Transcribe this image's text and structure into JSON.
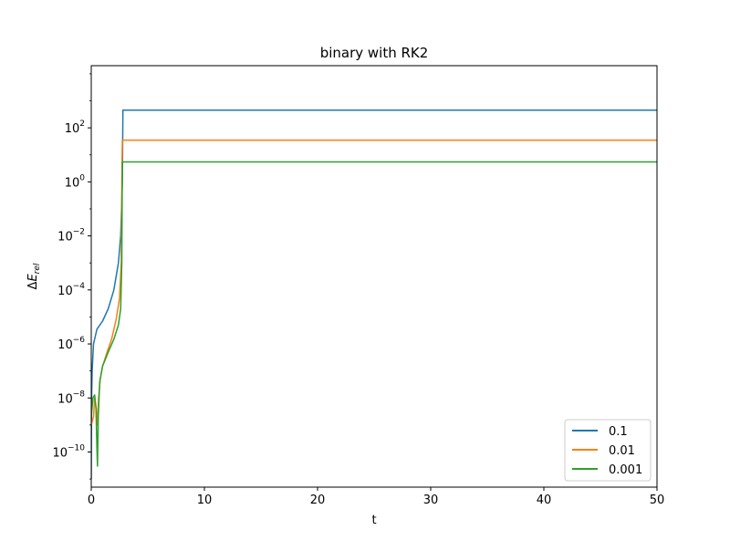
{
  "chart_data": {
    "type": "line",
    "title": "binary with RK2",
    "xlabel": "t",
    "ylabel_parts": {
      "delta": "Δ",
      "symbol": "E",
      "subscript": "rel"
    },
    "xlim": [
      0,
      50
    ],
    "ylim": [
      5e-12,
      20000.0
    ],
    "yscale": "log",
    "grid": false,
    "legend_position": "lower right",
    "x_ticks": [
      "0",
      "10",
      "20",
      "30",
      "40",
      "50"
    ],
    "x_tick_values": [
      0,
      10,
      20,
      30,
      40,
      50
    ],
    "y_ticks": [
      {
        "base": "10",
        "exp": "2",
        "value": 100
      },
      {
        "base": "10",
        "exp": "0",
        "value": 1
      },
      {
        "base": "10",
        "exp": "−2",
        "value": 0.01
      },
      {
        "base": "10",
        "exp": "−4",
        "value": 0.0001
      },
      {
        "base": "10",
        "exp": "−6",
        "value": 1e-06
      },
      {
        "base": "10",
        "exp": "−8",
        "value": 1e-08
      },
      {
        "base": "10",
        "exp": "−10",
        "value": 1e-10
      }
    ],
    "series": [
      {
        "name": "0.1",
        "color": "#1f77b4",
        "points": [
          [
            0.0,
            1e-11
          ],
          [
            0.03,
            1e-08
          ],
          [
            0.08,
            1e-07
          ],
          [
            0.2,
            1e-06
          ],
          [
            0.5,
            3.5e-06
          ],
          [
            1.0,
            7e-06
          ],
          [
            1.5,
            2e-05
          ],
          [
            2.0,
            0.0001
          ],
          [
            2.4,
            0.001
          ],
          [
            2.6,
            0.01
          ],
          [
            2.75,
            1
          ],
          [
            2.8,
            450
          ],
          [
            50,
            450
          ]
        ]
      },
      {
        "name": "0.01",
        "color": "#ff7f0e",
        "points": [
          [
            0.0,
            1e-09
          ],
          [
            0.2,
            2e-09
          ],
          [
            0.3,
            1e-08
          ],
          [
            0.45,
            4e-09
          ],
          [
            0.55,
            1e-09
          ],
          [
            0.65,
            1e-08
          ],
          [
            0.8,
            5e-08
          ],
          [
            1.0,
            1.5e-07
          ],
          [
            1.4,
            5e-07
          ],
          [
            1.8,
            1.5e-06
          ],
          [
            2.2,
            8e-06
          ],
          [
            2.5,
            5e-05
          ],
          [
            2.65,
            0.001
          ],
          [
            2.72,
            5
          ],
          [
            2.75,
            35
          ],
          [
            50,
            35
          ]
        ]
      },
      {
        "name": "0.001",
        "color": "#2ca02c",
        "points": [
          [
            0.0,
            2e-09
          ],
          [
            0.15,
            1e-08
          ],
          [
            0.3,
            1.3e-08
          ],
          [
            0.42,
            4e-09
          ],
          [
            0.5,
            1.5e-10
          ],
          [
            0.55,
            3e-11
          ],
          [
            0.62,
            2e-09
          ],
          [
            0.75,
            4e-08
          ],
          [
            1.0,
            1.5e-07
          ],
          [
            1.5,
            5e-07
          ],
          [
            2.0,
            1.5e-06
          ],
          [
            2.4,
            5e-06
          ],
          [
            2.6,
            2e-05
          ],
          [
            2.7,
            0.001
          ],
          [
            2.75,
            5.5
          ],
          [
            50,
            5.5
          ]
        ]
      }
    ]
  }
}
